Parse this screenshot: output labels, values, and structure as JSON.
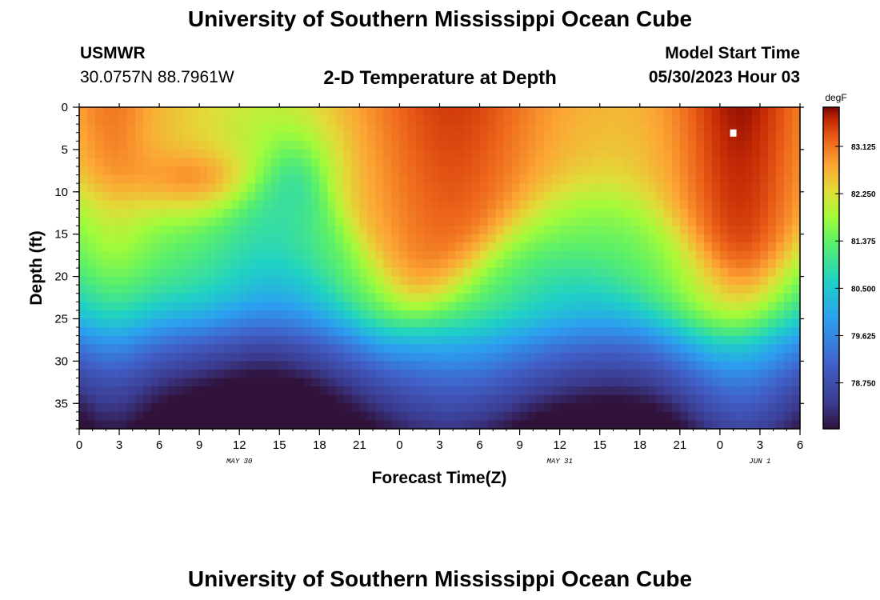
{
  "header": {
    "title": "University of Southern Mississippi Ocean Cube",
    "station": "USMWR",
    "coords": "30.0757N  88.7961W",
    "subtitle": "2-D Temperature at Depth",
    "model_start_label": "Model Start Time",
    "model_start_value": "05/30/2023 Hour 03"
  },
  "footer": {
    "title": "University of Southern Mississippi Ocean Cube"
  },
  "chart_data": {
    "type": "heatmap",
    "title": "2-D Temperature at Depth",
    "xlabel": "Forecast Time(Z)",
    "ylabel": "Depth (ft)",
    "x_hours_range": [
      0,
      54
    ],
    "ylim": [
      0,
      38
    ],
    "x_ticks": [
      {
        "h": 0,
        "label": "0"
      },
      {
        "h": 3,
        "label": "3"
      },
      {
        "h": 6,
        "label": "6"
      },
      {
        "h": 9,
        "label": "9"
      },
      {
        "h": 12,
        "label": "12"
      },
      {
        "h": 15,
        "label": "15"
      },
      {
        "h": 18,
        "label": "18"
      },
      {
        "h": 21,
        "label": "21"
      },
      {
        "h": 24,
        "label": "0"
      },
      {
        "h": 27,
        "label": "3"
      },
      {
        "h": 30,
        "label": "6"
      },
      {
        "h": 33,
        "label": "9"
      },
      {
        "h": 36,
        "label": "12"
      },
      {
        "h": 39,
        "label": "15"
      },
      {
        "h": 42,
        "label": "18"
      },
      {
        "h": 45,
        "label": "21"
      },
      {
        "h": 48,
        "label": "0"
      },
      {
        "h": 51,
        "label": "3"
      },
      {
        "h": 54,
        "label": "6"
      }
    ],
    "date_labels": [
      {
        "h": 12,
        "label": "MAY 30"
      },
      {
        "h": 36,
        "label": "MAY 31"
      },
      {
        "h": 51,
        "label": "JUN 1"
      }
    ],
    "y_ticks": [
      0,
      5,
      10,
      15,
      20,
      25,
      30,
      35
    ],
    "colorbar": {
      "unit": "degF",
      "min": 77.9,
      "max": 83.85,
      "labels": [
        "83.125",
        "82.250",
        "81.375",
        "80.500",
        "79.625",
        "78.750"
      ],
      "label_values": [
        83.125,
        82.25,
        81.375,
        80.5,
        79.625,
        78.75
      ]
    },
    "field_summary": "Warm surface layer (~82-83.6 degF) near 0-10 ft, strongest at hours 24-36 and 49-54; cooler mixed layer (~81 degF) surfacing near hour 15-18; temperature decreases with depth to ~78 degF at 35-38 ft.",
    "marker": {
      "h": 49,
      "depth": 3,
      "shape": "square"
    }
  }
}
